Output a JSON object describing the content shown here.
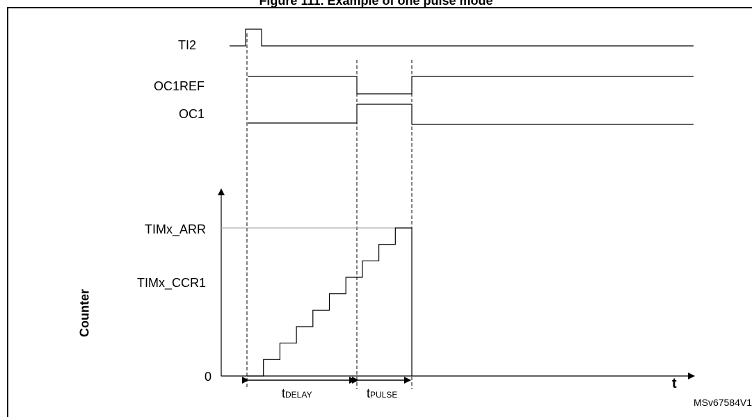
{
  "figure": {
    "title": "Figure 111. Example of one pulse mode",
    "ref_code": "MSv67584V1"
  },
  "signals": {
    "ti2": "TI2",
    "oc1ref": "OC1REF",
    "oc1": "OC1"
  },
  "counter": {
    "axis_label": "Counter",
    "arr_label": "TIMx_ARR",
    "ccr1_label": "TIMx_CCR1",
    "zero_label": "0",
    "time_label": "t",
    "steps": 10
  },
  "intervals": {
    "delay_main": "t",
    "delay_sub": "DELAY",
    "pulse_main": "t",
    "pulse_sub": "PULSE"
  }
}
